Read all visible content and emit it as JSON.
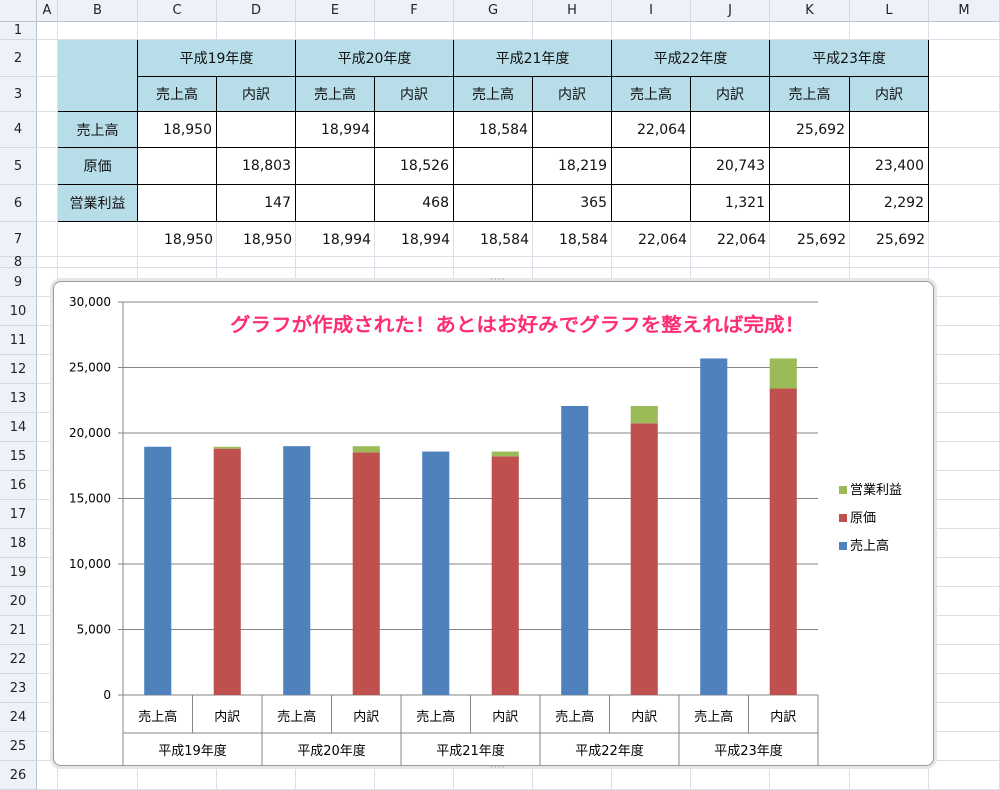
{
  "sheet": {
    "columns": [
      "A",
      "B",
      "C",
      "D",
      "E",
      "F",
      "G",
      "H",
      "I",
      "J",
      "K",
      "L",
      "M"
    ],
    "rows": [
      "1",
      "2",
      "3",
      "4",
      "5",
      "6",
      "7",
      "8",
      "9",
      "10",
      "11",
      "12",
      "13",
      "14",
      "15",
      "16",
      "17",
      "18",
      "19",
      "20",
      "21",
      "22",
      "23",
      "24",
      "25",
      "26"
    ]
  },
  "table": {
    "years": [
      "平成19年度",
      "平成20年度",
      "平成21年度",
      "平成22年度",
      "平成23年度"
    ],
    "subheaders": [
      "売上高",
      "内訳",
      "売上高",
      "内訳",
      "売上高",
      "内訳",
      "売上高",
      "内訳",
      "売上高",
      "内訳"
    ],
    "row_labels": [
      "売上高",
      "原価",
      "営業利益"
    ],
    "data": [
      [
        "18,950",
        "",
        "18,994",
        "",
        "18,584",
        "",
        "22,064",
        "",
        "25,692",
        ""
      ],
      [
        "",
        "18,803",
        "",
        "18,526",
        "",
        "18,219",
        "",
        "20,743",
        "",
        "23,400"
      ],
      [
        "",
        "147",
        "",
        "468",
        "",
        "365",
        "",
        "1,321",
        "",
        "2,292"
      ]
    ],
    "totals": [
      "18,950",
      "18,950",
      "18,994",
      "18,994",
      "18,584",
      "18,584",
      "22,064",
      "22,064",
      "25,692",
      "25,692"
    ]
  },
  "chart_data": {
    "type": "bar",
    "stacked": true,
    "annotation": "グラフが作成された！あとはお好みでグラフを整えれば完成！",
    "categories": [
      "売上高",
      "内訳",
      "売上高",
      "内訳",
      "売上高",
      "内訳",
      "売上高",
      "内訳",
      "売上高",
      "内訳"
    ],
    "groups": [
      "平成19年度",
      "平成20年度",
      "平成21年度",
      "平成22年度",
      "平成23年度"
    ],
    "series": [
      {
        "name": "売上高",
        "color": "#4f81bd",
        "values": [
          18950,
          0,
          18994,
          0,
          18584,
          0,
          22064,
          0,
          25692,
          0
        ]
      },
      {
        "name": "原価",
        "color": "#c0504d",
        "values": [
          0,
          18803,
          0,
          18526,
          0,
          18219,
          0,
          20743,
          0,
          23400
        ]
      },
      {
        "name": "営業利益",
        "color": "#9bbb59",
        "values": [
          0,
          147,
          0,
          468,
          0,
          365,
          0,
          1321,
          0,
          2292
        ]
      }
    ],
    "ylim": [
      0,
      30000
    ],
    "yticks": [
      0,
      5000,
      10000,
      15000,
      20000,
      25000,
      30000
    ],
    "ytick_labels": [
      "0",
      "5,000",
      "10,000",
      "15,000",
      "20,000",
      "25,000",
      "30,000"
    ],
    "grid": true,
    "legend": "right",
    "legend_order": [
      "営業利益",
      "原価",
      "売上高"
    ]
  }
}
